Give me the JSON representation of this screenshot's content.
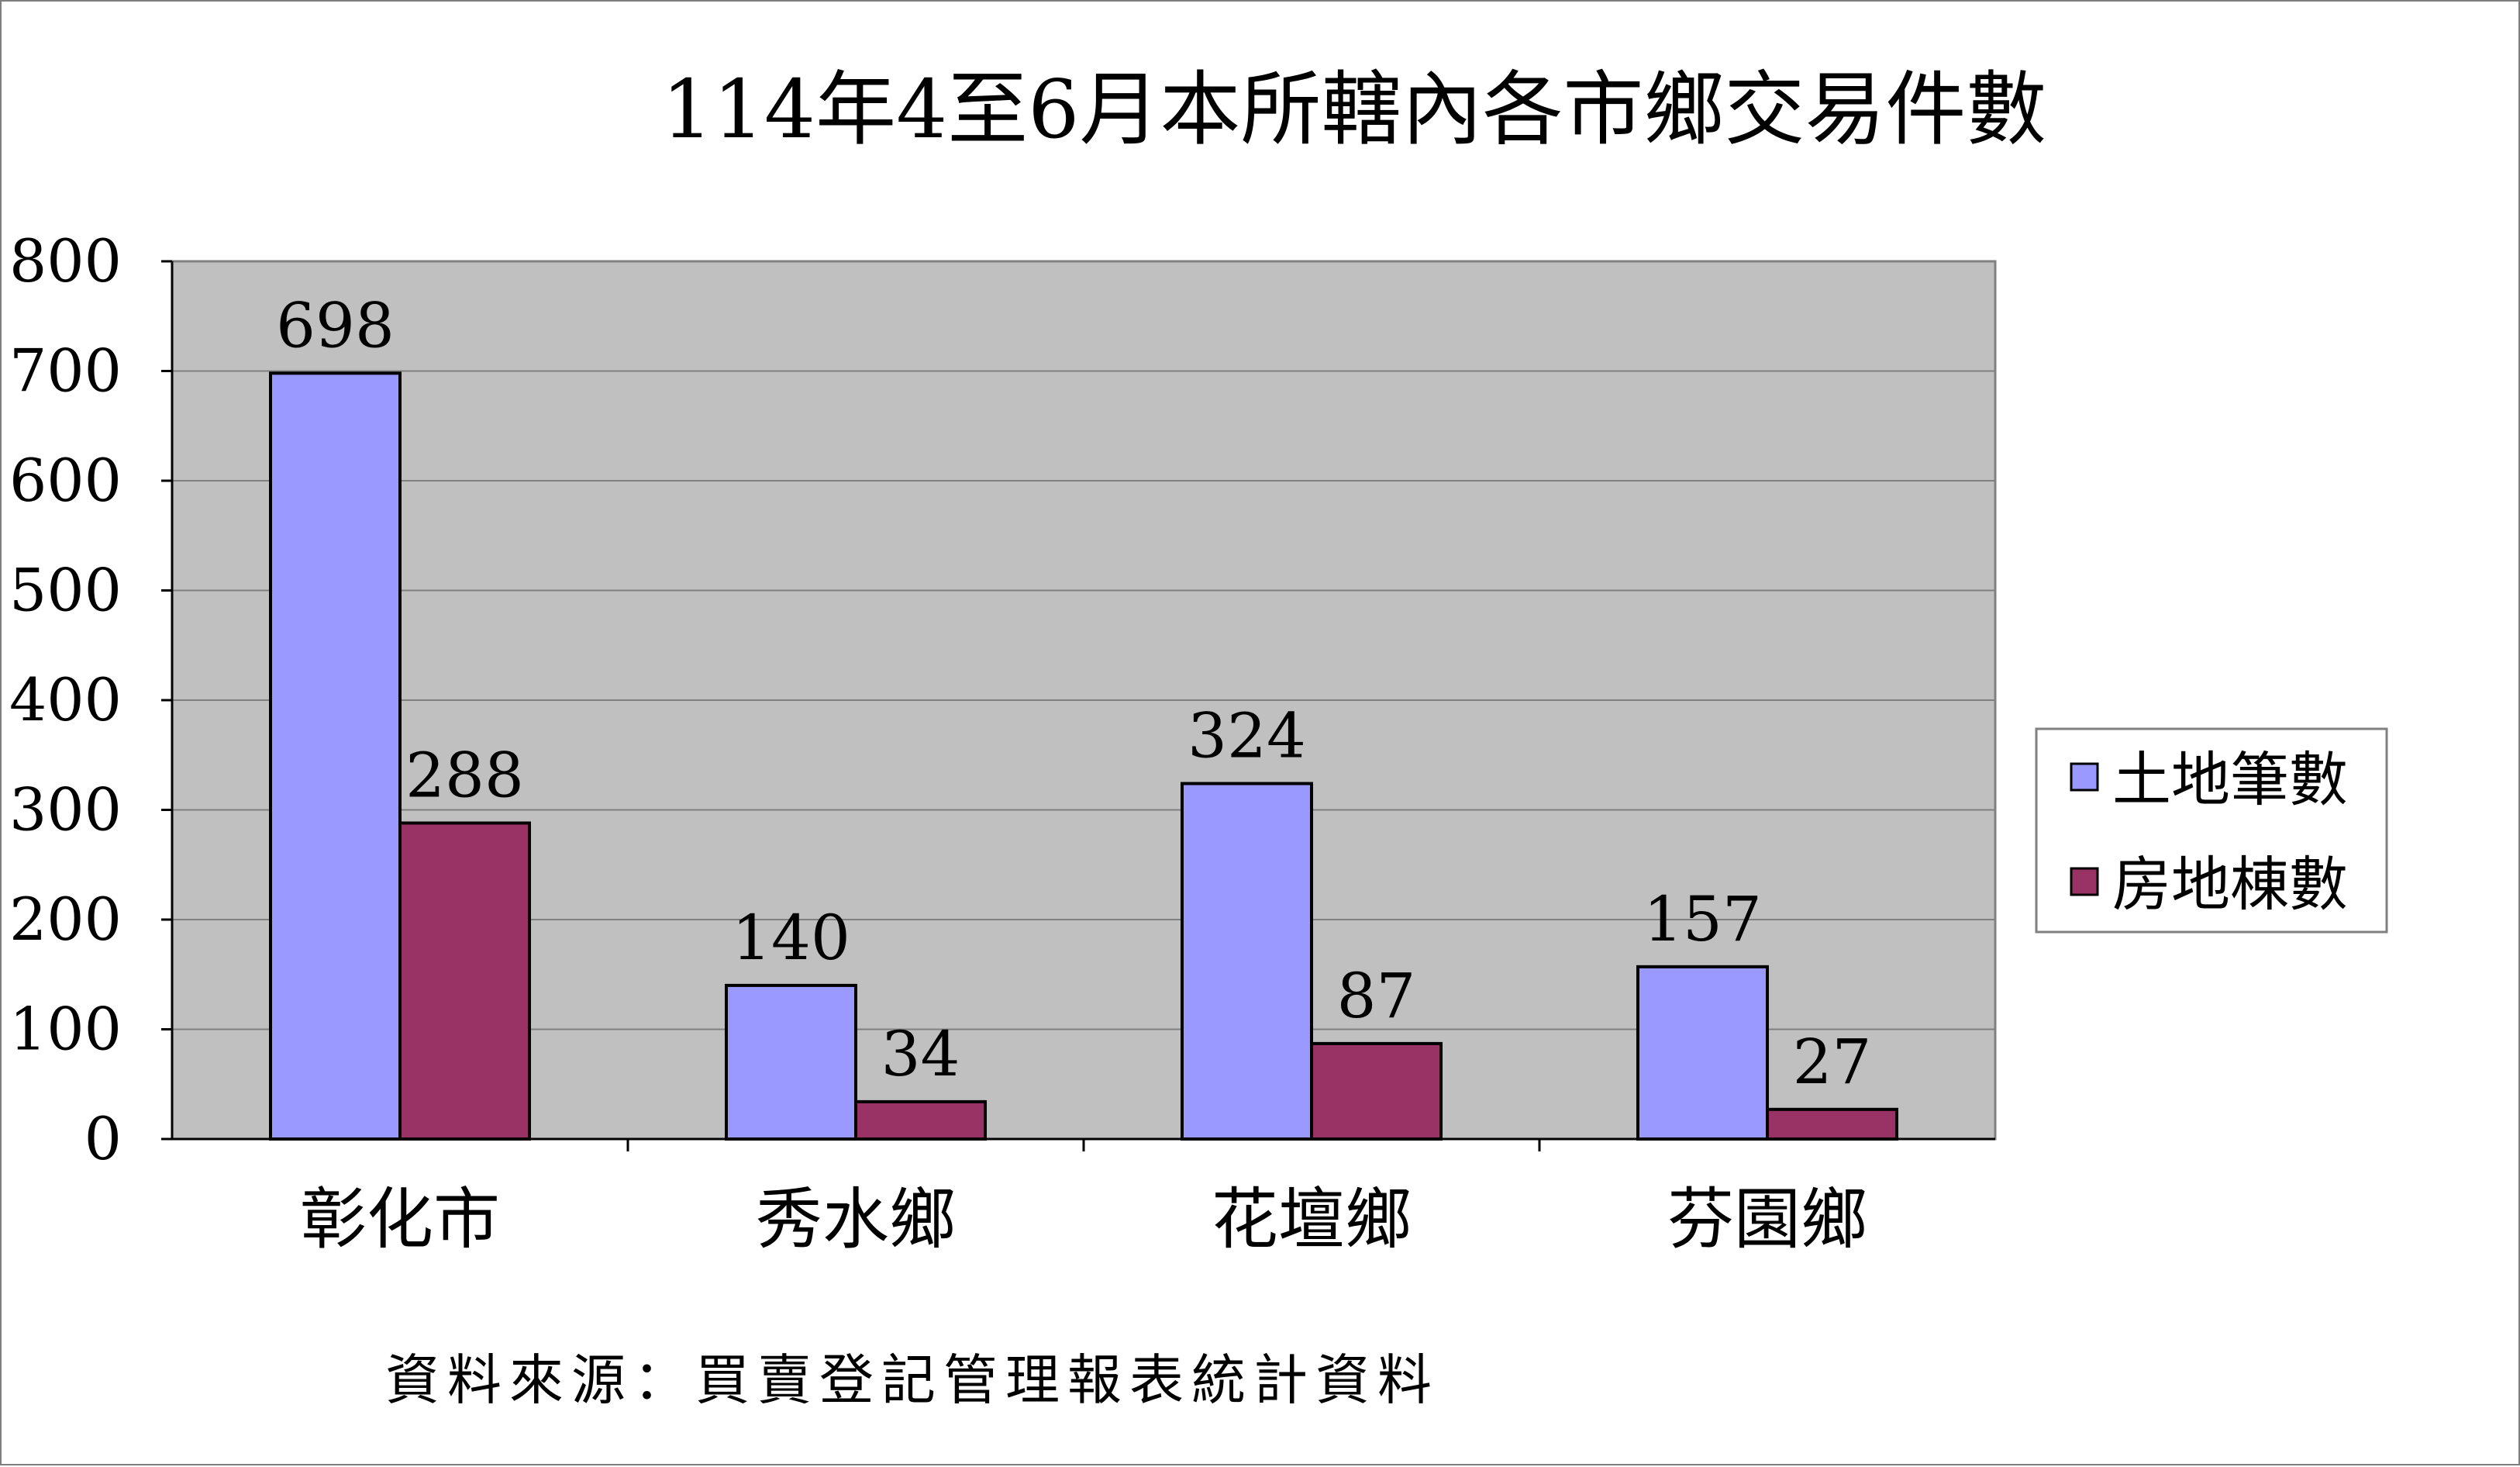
{
  "chart_data": {
    "type": "bar",
    "title": "114年4至6月本所轄內各市鄉交易件數",
    "categories": [
      "彰化市",
      "秀水鄉",
      "花壇鄉",
      "芬園鄉"
    ],
    "series": [
      {
        "name": "土地筆數",
        "values": [
          698,
          140,
          324,
          157
        ],
        "color": "#9999ff"
      },
      {
        "name": "房地棟數",
        "values": [
          288,
          34,
          87,
          27
        ],
        "color": "#993366"
      }
    ],
    "ylim": [
      0,
      800
    ],
    "yticks": [
      0,
      100,
      200,
      300,
      400,
      500,
      600,
      700,
      800
    ],
    "xlabel": "",
    "ylabel": "",
    "grid": true,
    "legend_position": "right",
    "plot_background": "#c0c0c0",
    "source_note": "資料來源：買賣登記管理報表統計資料"
  }
}
